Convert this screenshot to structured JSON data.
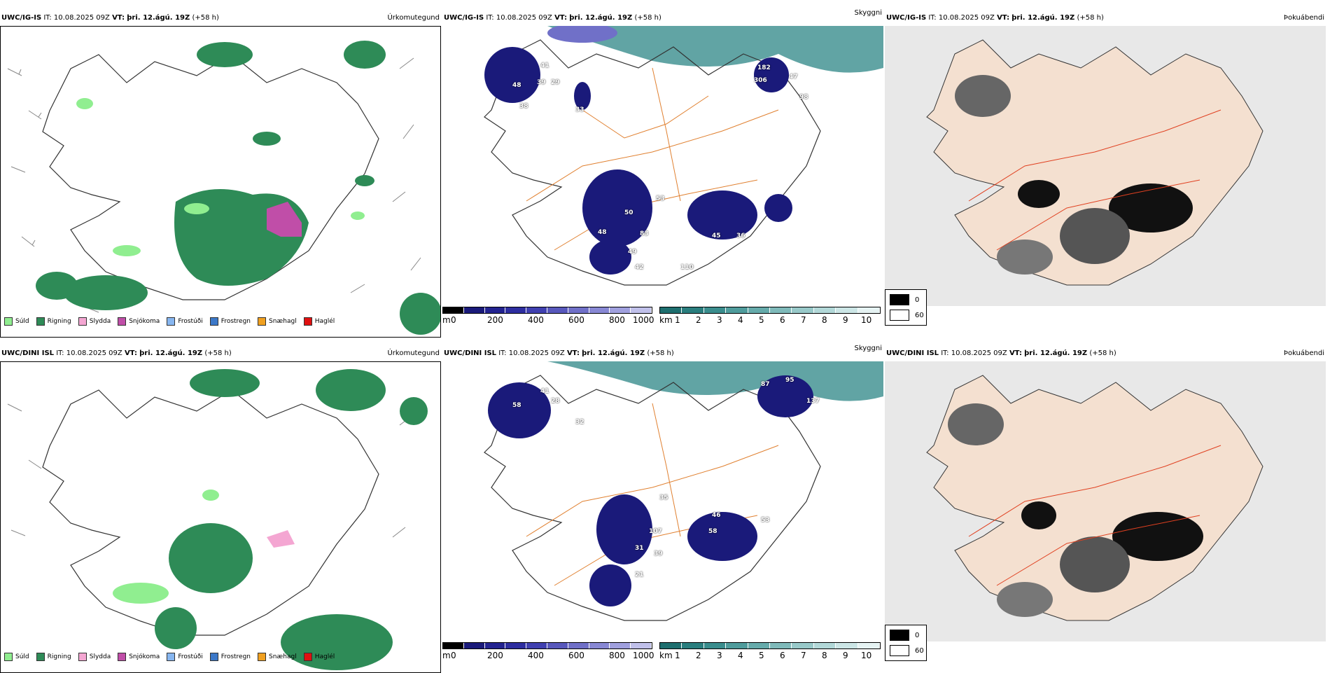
{
  "rows": [
    {
      "model": "UWC/IG-IS",
      "it_label": "IT:",
      "it_value": "10.08.2025 09Z",
      "vt_label": "VT:",
      "vt_value": "þri. 12.ágú. 19Z",
      "offset": "(+58 h)"
    },
    {
      "model": "UWC/DINI ISL",
      "it_label": "IT:",
      "it_value": "10.08.2025 09Z",
      "vt_label": "VT:",
      "vt_value": "þri. 12.ágú. 19Z",
      "offset": "(+58 h)"
    }
  ],
  "panel_types": {
    "precip": "Úrkomutegund",
    "ceiling": "Skyggni",
    "fog": "Þokuábendi"
  },
  "precip_legend": [
    {
      "label": "Súld",
      "color": "#90ee90"
    },
    {
      "label": "Rigning",
      "color": "#2e8b57"
    },
    {
      "label": "Slydda",
      "color": "#f4a6d2"
    },
    {
      "label": "Snjókoma",
      "color": "#c04ea8"
    },
    {
      "label": "Frostúði",
      "color": "#87b6f0"
    },
    {
      "label": "Frostregn",
      "color": "#3c78c8"
    },
    {
      "label": "Snæhagl",
      "color": "#f0a020"
    },
    {
      "label": "Haglél",
      "color": "#e01010"
    }
  ],
  "ceiling_bar": {
    "unit": "m",
    "ticks": [
      "0",
      "200",
      "400",
      "600",
      "800",
      "1000"
    ],
    "colors": [
      "#000000",
      "#1a1a7a",
      "#232390",
      "#2e2ea0",
      "#4040b0",
      "#5858bc",
      "#7070c8",
      "#8888d4",
      "#a0a0de",
      "#c0c0ea"
    ]
  },
  "vis_bar": {
    "unit": "km",
    "ticks": [
      "1",
      "2",
      "3",
      "4",
      "5",
      "6",
      "7",
      "8",
      "9",
      "10"
    ],
    "colors": [
      "#1e6f6f",
      "#2a7e7e",
      "#3a8d8d",
      "#4f9c9c",
      "#66abab",
      "#7fbaba",
      "#98c9c9",
      "#b2d8d8",
      "#cce6e6",
      "#e6f3f3"
    ]
  },
  "fog_legend": {
    "dark_label": "0",
    "light_label": "60"
  },
  "ceiling_labels": [
    [
      "41",
      "39",
      "29",
      "48",
      "38",
      "33",
      "59",
      "10",
      "121",
      "37",
      "182",
      "306",
      "474",
      "47",
      "98",
      "48",
      "50",
      "53",
      "44",
      "48",
      "83",
      "55",
      "54",
      "49",
      "42",
      "53",
      "28",
      "23",
      "25",
      "97",
      "74",
      "73",
      "66",
      "45",
      "36",
      "57",
      "49",
      "110",
      "66",
      "78",
      "27",
      "116",
      "71",
      "44",
      "55"
    ],
    [
      "41",
      "38",
      "28",
      "58",
      "52",
      "55",
      "54",
      "47",
      "32",
      "56",
      "28",
      "87",
      "95",
      "142",
      "137",
      "119",
      "52",
      "54",
      "60",
      "35",
      "60",
      "51",
      "52",
      "107",
      "31",
      "39",
      "26",
      "21",
      "25",
      "46",
      "58",
      "48",
      "53",
      "81",
      "36",
      "74",
      "24",
      "69",
      "82"
    ]
  ]
}
